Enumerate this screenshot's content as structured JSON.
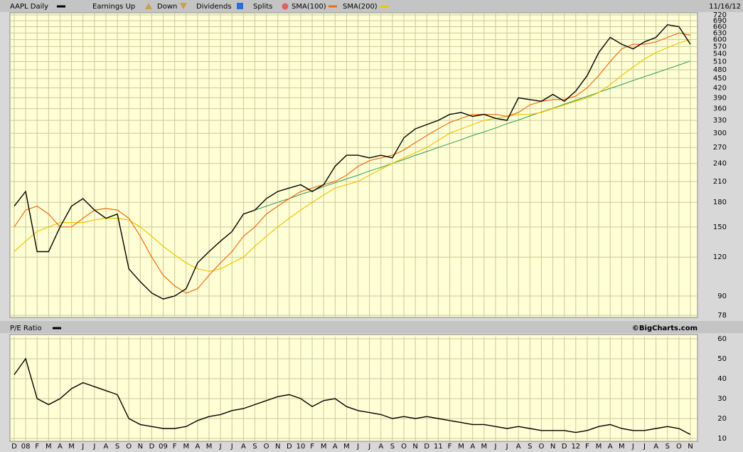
{
  "chart_data": [
    {
      "type": "line",
      "date": "11/16/12",
      "ylog": true,
      "grid": true,
      "ylim": [
        78,
        720
      ],
      "yticks": [
        78,
        90,
        120,
        150,
        180,
        210,
        240,
        270,
        300,
        330,
        360,
        390,
        420,
        450,
        480,
        510,
        540,
        570,
        600,
        630,
        660,
        690,
        720
      ],
      "legend_extra": [
        "Earnings Up",
        "Down",
        "Dividends",
        "Splits"
      ],
      "series": [
        {
          "name": "AAPL Daily",
          "color": "#000000",
          "values": [
            175,
            195,
            125,
            125,
            150,
            175,
            185,
            170,
            160,
            165,
            110,
            100,
            92,
            88,
            90,
            95,
            115,
            125,
            135,
            145,
            165,
            170,
            185,
            195,
            200,
            205,
            195,
            205,
            235,
            255,
            255,
            250,
            255,
            250,
            290,
            310,
            320,
            330,
            345,
            350,
            340,
            345,
            335,
            330,
            390,
            385,
            380,
            400,
            380,
            410,
            460,
            545,
            610,
            580,
            560,
            590,
            610,
            670,
            660,
            580
          ]
        },
        {
          "name": "SMA(100)",
          "color": "#f06a10",
          "values": [
            150,
            170,
            175,
            165,
            150,
            150,
            160,
            170,
            172,
            170,
            160,
            140,
            120,
            105,
            97,
            92,
            95,
            105,
            115,
            125,
            140,
            150,
            165,
            175,
            185,
            195,
            200,
            205,
            210,
            220,
            235,
            245,
            250,
            255,
            265,
            280,
            295,
            310,
            325,
            335,
            345,
            345,
            345,
            340,
            350,
            370,
            380,
            385,
            385,
            395,
            420,
            460,
            510,
            560,
            580,
            580,
            590,
            610,
            630,
            620
          ]
        },
        {
          "name": "SMA(200)",
          "color": "#f2c400",
          "values": [
            125,
            135,
            145,
            150,
            155,
            155,
            155,
            158,
            160,
            160,
            158,
            150,
            140,
            130,
            122,
            115,
            110,
            108,
            110,
            115,
            120,
            130,
            140,
            150,
            160,
            170,
            180,
            190,
            200,
            205,
            210,
            220,
            230,
            240,
            250,
            260,
            270,
            285,
            300,
            310,
            320,
            330,
            335,
            340,
            345,
            345,
            350,
            360,
            370,
            380,
            390,
            405,
            430,
            460,
            490,
            520,
            545,
            565,
            585,
            600
          ]
        }
      ],
      "trendline": {
        "color": "#2e9a4e",
        "values": [
          null,
          null,
          null,
          null,
          null,
          null,
          null,
          null,
          null,
          null,
          null,
          null,
          null,
          null,
          null,
          null,
          null,
          null,
          null,
          null,
          165,
          170,
          175,
          180,
          185,
          191,
          196,
          202,
          208,
          214,
          220,
          227,
          233,
          240,
          247,
          255,
          262,
          270,
          278,
          286,
          295,
          303,
          312,
          322,
          331,
          341,
          351,
          361,
          372,
          383,
          394,
          406,
          418,
          430,
          443,
          456,
          469,
          483,
          497,
          512
        ]
      }
    },
    {
      "type": "line",
      "credit": "©BigCharts.com",
      "grid": true,
      "ylim": [
        10,
        60
      ],
      "yticks": [
        10,
        20,
        30,
        40,
        50,
        60
      ],
      "categories": [
        "D",
        "08",
        "F",
        "M",
        "A",
        "M",
        "J",
        "J",
        "A",
        "S",
        "O",
        "N",
        "D",
        "09",
        "F",
        "M",
        "A",
        "M",
        "J",
        "J",
        "A",
        "S",
        "O",
        "N",
        "D",
        "10",
        "F",
        "M",
        "A",
        "M",
        "J",
        "J",
        "A",
        "S",
        "O",
        "N",
        "D",
        "11",
        "F",
        "M",
        "A",
        "M",
        "J",
        "J",
        "A",
        "S",
        "O",
        "N",
        "D",
        "12",
        "F",
        "M",
        "A",
        "M",
        "J",
        "J",
        "A",
        "S",
        "O",
        "N"
      ],
      "series": [
        {
          "name": "P/E Ratio",
          "color": "#000000",
          "values": [
            42,
            50,
            30,
            27,
            30,
            35,
            38,
            36,
            34,
            32,
            20,
            17,
            16,
            15,
            15,
            16,
            19,
            21,
            22,
            24,
            25,
            27,
            29,
            31,
            32,
            30,
            26,
            29,
            30,
            26,
            24,
            23,
            22,
            20,
            21,
            20,
            21,
            20,
            19,
            18,
            17,
            17,
            16,
            15,
            16,
            15,
            14,
            14,
            14,
            13,
            14,
            16,
            17,
            15,
            14,
            14,
            15,
            16,
            15,
            12
          ]
        }
      ]
    }
  ]
}
